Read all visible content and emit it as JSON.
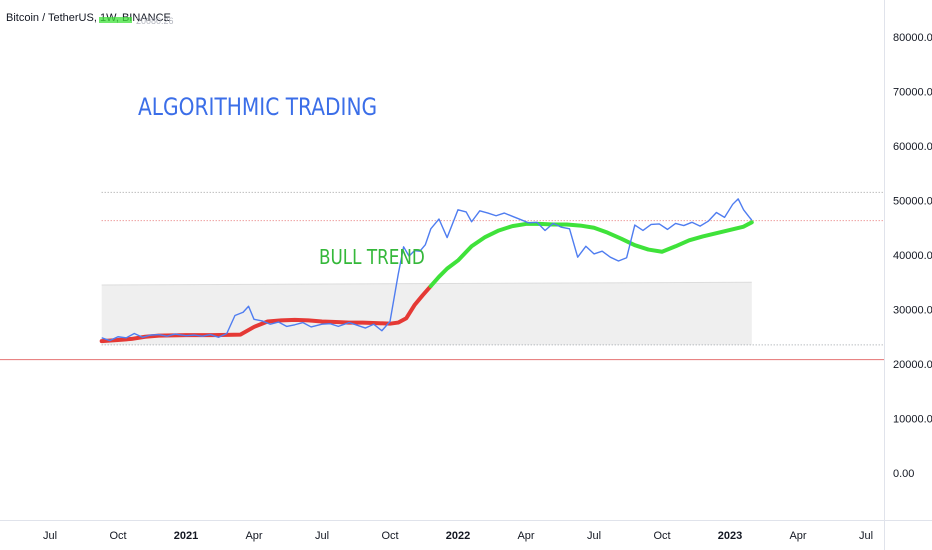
{
  "header": {
    "symbol_title": "Bitcoin / TetherUS, 1W, BINANCE",
    "indicator_value": "20080.26"
  },
  "annotations": {
    "title": "ALGORITHMIC TRADING",
    "trend": "BULL TREND"
  },
  "colors": {
    "price_line": "#4f7df0",
    "ma_bull": "#3fe23a",
    "ma_bear": "#e53935",
    "annot_blue": "#3b6ee8",
    "annot_green": "#35b83a",
    "band_fill": "#e9e9e9",
    "dotted_red": "#e57373",
    "dotted_gray": "#9e9e9e"
  },
  "chart_data": {
    "type": "line",
    "yaxis_labels": [
      "80000.00",
      "70000.00",
      "60000.00",
      "50000.00",
      "40000.00",
      "30000.00",
      "20000.00",
      "10000.00",
      "0.00"
    ],
    "yticks": [
      80000,
      70000,
      60000,
      50000,
      40000,
      30000,
      20000,
      10000,
      0
    ],
    "ylim": [
      -7000,
      87500
    ],
    "xaxis_labels": [
      {
        "label": "Jul",
        "t": 2020.5,
        "bold": false
      },
      {
        "label": "Oct",
        "t": 2020.75,
        "bold": false
      },
      {
        "label": "2021",
        "t": 2021.0,
        "bold": true
      },
      {
        "label": "Apr",
        "t": 2021.25,
        "bold": false
      },
      {
        "label": "Jul",
        "t": 2021.5,
        "bold": false
      },
      {
        "label": "Oct",
        "t": 2021.75,
        "bold": false
      },
      {
        "label": "2022",
        "t": 2022.0,
        "bold": true
      },
      {
        "label": "Apr",
        "t": 2022.25,
        "bold": false
      },
      {
        "label": "Jul",
        "t": 2022.5,
        "bold": false
      },
      {
        "label": "Oct",
        "t": 2022.75,
        "bold": false
      },
      {
        "label": "2023",
        "t": 2023.0,
        "bold": true
      },
      {
        "label": "Apr",
        "t": 2023.25,
        "bold": false
      },
      {
        "label": "Jul",
        "t": 2023.5,
        "bold": false
      }
    ],
    "band": {
      "t_start": 2020.69,
      "t_end": 2023.08,
      "lower": 23500,
      "upper": 34500,
      "upper_end": 35000
    },
    "hlines": [
      {
        "name": "upper-dotted-level",
        "value": 51500,
        "style": "dotted-gray",
        "t_start": 2020.69
      },
      {
        "name": "middle-dotted-level",
        "value": 46300,
        "style": "dotted-red",
        "t_start": 2020.69
      },
      {
        "name": "lower-level-line",
        "value": 20800,
        "style": "solid-red",
        "t_start": 2020.3
      }
    ],
    "series": [
      {
        "name": "",
        "role": "price",
        "x": [
          2020.69,
          2020.72,
          2020.75,
          2020.78,
          2020.81,
          2020.84,
          2020.87,
          2020.9,
          2020.93,
          2020.96,
          2021.0,
          2021.03,
          2021.06,
          2021.09,
          2021.12,
          2021.15,
          2021.18,
          2021.21,
          2021.23,
          2021.25,
          2021.28,
          2021.31,
          2021.34,
          2021.37,
          2021.4,
          2021.43,
          2021.46,
          2021.5,
          2021.53,
          2021.56,
          2021.6,
          2021.63,
          2021.66,
          2021.69,
          2021.72,
          2021.75,
          2021.78,
          2021.8,
          2021.82,
          2021.84,
          2021.86,
          2021.88,
          2021.9,
          2021.93,
          2021.96,
          2022.0,
          2022.03,
          2022.05,
          2022.08,
          2022.11,
          2022.14,
          2022.17,
          2022.2,
          2022.23,
          2022.26,
          2022.29,
          2022.32,
          2022.35,
          2022.38,
          2022.41,
          2022.44,
          2022.47,
          2022.5,
          2022.53,
          2022.56,
          2022.59,
          2022.62,
          2022.65,
          2022.68,
          2022.71,
          2022.74,
          2022.77,
          2022.8,
          2022.83,
          2022.86,
          2022.89,
          2022.92,
          2022.95,
          2022.98,
          2023.01,
          2023.03,
          2023.05,
          2023.07,
          2023.08
        ],
        "values": [
          24800,
          24300,
          25000,
          24800,
          25600,
          24900,
          25300,
          25400,
          25100,
          25500,
          25200,
          25300,
          25100,
          25400,
          24900,
          25600,
          28900,
          29500,
          30600,
          28200,
          27900,
          27300,
          27700,
          26900,
          27200,
          27600,
          26800,
          27300,
          27400,
          26900,
          27600,
          27100,
          26600,
          27300,
          26100,
          27800,
          36400,
          41500,
          39800,
          40800,
          40700,
          41900,
          44800,
          46600,
          43200,
          48300,
          47900,
          46100,
          48100,
          47700,
          47200,
          47700,
          47100,
          46500,
          45900,
          46000,
          44500,
          45800,
          45100,
          44800,
          39600,
          41600,
          40200,
          40700,
          39600,
          38900,
          39500,
          45500,
          44500,
          45600,
          45700,
          44700,
          45800,
          45400,
          46000,
          45300,
          46200,
          47800,
          46900,
          49300,
          50300,
          48300,
          47000,
          46400
        ]
      },
      {
        "name": "",
        "role": "moving-average",
        "x": [
          2020.69,
          2020.75,
          2020.8,
          2020.85,
          2020.9,
          2020.95,
          2021.0,
          2021.05,
          2021.1,
          2021.15,
          2021.2,
          2021.25,
          2021.3,
          2021.35,
          2021.4,
          2021.45,
          2021.5,
          2021.55,
          2021.6,
          2021.65,
          2021.7,
          2021.75,
          2021.78,
          2021.81,
          2021.84,
          2021.87,
          2021.9,
          2021.93,
          2021.96,
          2022.0,
          2022.05,
          2022.1,
          2022.15,
          2022.2,
          2022.25,
          2022.3,
          2022.35,
          2022.4,
          2022.45,
          2022.5,
          2022.55,
          2022.6,
          2022.65,
          2022.7,
          2022.75,
          2022.8,
          2022.85,
          2022.9,
          2022.95,
          2023.0,
          2023.05,
          2023.08
        ],
        "values": [
          24200,
          24400,
          24600,
          25000,
          25200,
          25250,
          25300,
          25300,
          25300,
          25350,
          25400,
          26800,
          27800,
          28000,
          28100,
          28000,
          27800,
          27700,
          27600,
          27600,
          27500,
          27400,
          27600,
          28400,
          30800,
          32600,
          34300,
          36000,
          37500,
          39000,
          41600,
          43300,
          44500,
          45300,
          45700,
          45700,
          45600,
          45600,
          45400,
          45000,
          44100,
          43000,
          41800,
          41000,
          40600,
          41600,
          42700,
          43400,
          44000,
          44600,
          45200,
          46000
        ],
        "bear_until": 2021.92
      }
    ]
  }
}
